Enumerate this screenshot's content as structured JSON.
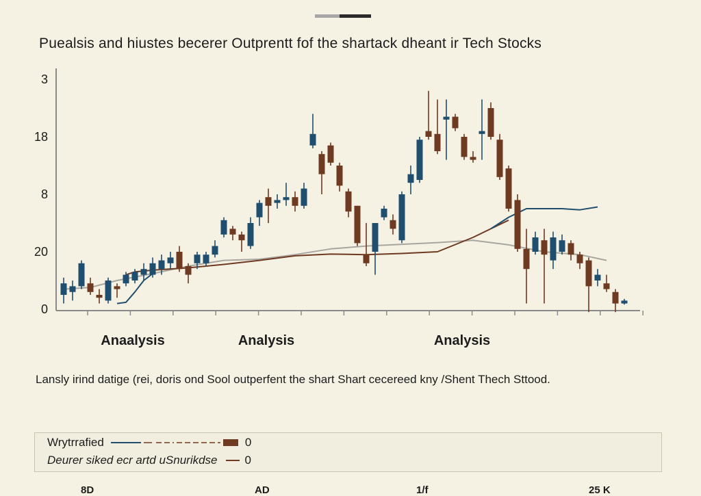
{
  "title": "Puealsis and hiustes becerer Outprentt fof the shartack dheant ir Tech Stocks",
  "caption": "Lansly irind datige (rei, doris ond Sool outperfent the shart Shart cecereed kny /Shent Thech Sttood.",
  "colors": {
    "background": "#f5f1e3",
    "bullish": "#1f4e6e",
    "bearish": "#6e3a22",
    "ma_long": "#6e3a22",
    "ma_gray": "#a9a6a0",
    "ma_blue": "#1f4e6e"
  },
  "legend": [
    {
      "label": "Wrytrrafied",
      "value": "0",
      "swatch": "line-dash-candle"
    },
    {
      "label": "Deurer siked ecr artd uSnurikdse",
      "value": "0",
      "swatch": "short-line"
    }
  ],
  "bottom_ticks": [
    "8D",
    "AD",
    "1/f",
    "25 K"
  ],
  "chart_data": {
    "type": "candlestick",
    "title": "Puealsis and hiustes becerer Outprentt fof the shartack dheant ir Tech Stocks",
    "y_tick_labels": [
      "0",
      "20",
      "8",
      "18",
      "3"
    ],
    "y_tick_positions": [
      0,
      1,
      2,
      3,
      4
    ],
    "ylim": [
      0,
      4.3
    ],
    "x_section_labels": [
      {
        "label": "Anaalysis",
        "index": 7
      },
      {
        "label": "Analysis",
        "index": 22
      },
      {
        "label": "Analysis",
        "index": 44
      }
    ],
    "grid": false,
    "legend_position": "bottom",
    "candles": [
      {
        "i": 0,
        "open": 0.25,
        "close": 0.45,
        "high": 0.55,
        "low": 0.1
      },
      {
        "i": 1,
        "open": 0.3,
        "close": 0.4,
        "high": 0.5,
        "low": 0.15
      },
      {
        "i": 2,
        "open": 0.4,
        "close": 0.8,
        "high": 0.85,
        "low": 0.35
      },
      {
        "i": 3,
        "open": 0.45,
        "close": 0.3,
        "high": 0.55,
        "low": 0.25
      },
      {
        "i": 4,
        "open": 0.25,
        "close": 0.2,
        "high": 0.35,
        "low": 0.1
      },
      {
        "i": 5,
        "open": 0.15,
        "close": 0.5,
        "high": 0.55,
        "low": 0.1
      },
      {
        "i": 6,
        "open": 0.4,
        "close": 0.35,
        "high": 0.45,
        "low": 0.2
      },
      {
        "i": 7,
        "open": 0.45,
        "close": 0.6,
        "high": 0.65,
        "low": 0.4
      },
      {
        "i": 8,
        "open": 0.5,
        "close": 0.65,
        "high": 0.7,
        "low": 0.45
      },
      {
        "i": 9,
        "open": 0.6,
        "close": 0.7,
        "high": 0.8,
        "low": 0.5
      },
      {
        "i": 10,
        "open": 0.6,
        "close": 0.8,
        "high": 0.9,
        "low": 0.55
      },
      {
        "i": 11,
        "open": 0.7,
        "close": 0.85,
        "high": 0.95,
        "low": 0.6
      },
      {
        "i": 12,
        "open": 0.8,
        "close": 0.9,
        "high": 1.0,
        "low": 0.7
      },
      {
        "i": 13,
        "open": 1.0,
        "close": 0.7,
        "high": 1.1,
        "low": 0.65
      },
      {
        "i": 14,
        "open": 0.75,
        "close": 0.6,
        "high": 0.8,
        "low": 0.45
      },
      {
        "i": 15,
        "open": 0.8,
        "close": 0.95,
        "high": 1.0,
        "low": 0.7
      },
      {
        "i": 16,
        "open": 0.8,
        "close": 0.95,
        "high": 1.0,
        "low": 0.75
      },
      {
        "i": 17,
        "open": 0.95,
        "close": 1.1,
        "high": 1.2,
        "low": 0.9
      },
      {
        "i": 18,
        "open": 1.3,
        "close": 1.55,
        "high": 1.6,
        "low": 1.25
      },
      {
        "i": 19,
        "open": 1.4,
        "close": 1.3,
        "high": 1.45,
        "low": 1.2
      },
      {
        "i": 20,
        "open": 1.3,
        "close": 1.2,
        "high": 1.35,
        "low": 1.0
      },
      {
        "i": 21,
        "open": 1.1,
        "close": 1.5,
        "high": 1.6,
        "low": 1.05
      },
      {
        "i": 22,
        "open": 1.6,
        "close": 1.85,
        "high": 1.9,
        "low": 1.45
      },
      {
        "i": 23,
        "open": 1.95,
        "close": 1.8,
        "high": 2.1,
        "low": 1.5
      },
      {
        "i": 24,
        "open": 1.85,
        "close": 1.9,
        "high": 2.0,
        "low": 1.75
      },
      {
        "i": 25,
        "open": 1.9,
        "close": 1.95,
        "high": 2.2,
        "low": 1.8
      },
      {
        "i": 26,
        "open": 1.95,
        "close": 1.8,
        "high": 2.05,
        "low": 1.7
      },
      {
        "i": 27,
        "open": 1.8,
        "close": 2.1,
        "high": 2.2,
        "low": 1.75
      },
      {
        "i": 28,
        "open": 2.85,
        "close": 3.05,
        "high": 3.4,
        "low": 2.8
      },
      {
        "i": 29,
        "open": 2.7,
        "close": 2.35,
        "high": 2.75,
        "low": 2.0
      },
      {
        "i": 30,
        "open": 2.85,
        "close": 2.55,
        "high": 2.9,
        "low": 2.5
      },
      {
        "i": 31,
        "open": 2.5,
        "close": 2.15,
        "high": 2.55,
        "low": 2.05
      },
      {
        "i": 32,
        "open": 2.05,
        "close": 1.7,
        "high": 2.1,
        "low": 1.6
      },
      {
        "i": 33,
        "open": 1.8,
        "close": 1.15,
        "high": 1.8,
        "low": 1.1
      },
      {
        "i": 34,
        "open": 0.95,
        "close": 0.8,
        "high": 1.5,
        "low": 0.75
      },
      {
        "i": 35,
        "open": 1.0,
        "close": 1.5,
        "high": 1.5,
        "low": 0.6
      },
      {
        "i": 36,
        "open": 1.6,
        "close": 1.75,
        "high": 1.8,
        "low": 1.55
      },
      {
        "i": 37,
        "open": 1.55,
        "close": 1.4,
        "high": 1.65,
        "low": 1.3
      },
      {
        "i": 38,
        "open": 1.2,
        "close": 2.0,
        "high": 2.05,
        "low": 1.15
      },
      {
        "i": 39,
        "open": 2.2,
        "close": 2.35,
        "high": 2.5,
        "low": 2.0
      },
      {
        "i": 40,
        "open": 2.25,
        "close": 2.95,
        "high": 3.0,
        "low": 2.2
      },
      {
        "i": 41,
        "open": 3.1,
        "close": 3.0,
        "high": 3.8,
        "low": 2.95
      },
      {
        "i": 42,
        "open": 3.05,
        "close": 2.75,
        "high": 3.65,
        "low": 2.7
      },
      {
        "i": 43,
        "open": 3.3,
        "close": 3.35,
        "high": 3.65,
        "low": 2.6
      },
      {
        "i": 44,
        "open": 3.35,
        "close": 3.15,
        "high": 3.4,
        "low": 3.1
      },
      {
        "i": 45,
        "open": 3.0,
        "close": 2.65,
        "high": 3.05,
        "low": 2.6
      },
      {
        "i": 46,
        "open": 2.65,
        "close": 2.6,
        "high": 2.75,
        "low": 2.55
      },
      {
        "i": 47,
        "open": 3.05,
        "close": 3.1,
        "high": 3.65,
        "low": 2.6
      },
      {
        "i": 48,
        "open": 3.5,
        "close": 3.0,
        "high": 3.6,
        "low": 2.95
      },
      {
        "i": 49,
        "open": 2.95,
        "close": 2.3,
        "high": 3.05,
        "low": 2.25
      },
      {
        "i": 50,
        "open": 2.45,
        "close": 1.75,
        "high": 2.5,
        "low": 1.7
      },
      {
        "i": 51,
        "open": 1.9,
        "close": 1.05,
        "high": 2.0,
        "low": 1.0
      },
      {
        "i": 52,
        "open": 1.05,
        "close": 0.7,
        "high": 1.4,
        "low": 0.1
      },
      {
        "i": 53,
        "open": 1.0,
        "close": 1.25,
        "high": 1.35,
        "low": 0.95
      },
      {
        "i": 54,
        "open": 1.2,
        "close": 0.95,
        "high": 1.4,
        "low": 0.1
      },
      {
        "i": 55,
        "open": 0.85,
        "close": 1.25,
        "high": 1.35,
        "low": 0.7
      },
      {
        "i": 56,
        "open": 1.0,
        "close": 1.2,
        "high": 1.3,
        "low": 0.95
      },
      {
        "i": 57,
        "open": 1.15,
        "close": 0.95,
        "high": 1.2,
        "low": 0.85
      },
      {
        "i": 58,
        "open": 0.95,
        "close": 0.8,
        "high": 1.0,
        "low": 0.7
      },
      {
        "i": 59,
        "open": 0.85,
        "close": 0.4,
        "high": 0.9,
        "low": -0.05
      },
      {
        "i": 60,
        "open": 0.5,
        "close": 0.6,
        "high": 0.7,
        "low": 0.4
      },
      {
        "i": 61,
        "open": 0.45,
        "close": 0.35,
        "high": 0.6,
        "low": 0.3
      },
      {
        "i": 62,
        "open": 0.3,
        "close": 0.1,
        "high": 0.35,
        "low": -0.05
      },
      {
        "i": 63,
        "open": 0.1,
        "close": 0.15,
        "high": 0.18,
        "low": 0.08
      }
    ],
    "series": [
      {
        "color": "#a9a6a0",
        "x": [
          0,
          3,
          6,
          10,
          14,
          18,
          22,
          26,
          30,
          34,
          38,
          42,
          46,
          50,
          54,
          58,
          61
        ],
        "values": [
          0.35,
          0.38,
          0.5,
          0.62,
          0.75,
          0.85,
          0.87,
          0.95,
          1.05,
          1.1,
          1.13,
          1.16,
          1.2,
          1.12,
          1.0,
          0.95,
          0.85
        ]
      },
      {
        "color": "#6e3a22",
        "x": [
          7,
          8,
          10,
          14,
          18,
          22,
          26,
          30,
          34,
          38,
          42,
          46,
          48,
          50
        ],
        "values": [
          0.6,
          0.65,
          0.68,
          0.72,
          0.78,
          0.85,
          0.93,
          0.96,
          0.95,
          0.97,
          1.0,
          1.25,
          1.4,
          1.55
        ]
      },
      {
        "color": "#1f4e6e",
        "x": [
          6,
          7,
          8,
          9,
          10
        ],
        "values": [
          0.1,
          0.12,
          0.3,
          0.5,
          0.62
        ]
      },
      {
        "color": "#1f4e6e",
        "x": [
          48,
          50,
          52,
          54,
          56,
          58,
          60
        ],
        "values": [
          1.4,
          1.6,
          1.75,
          1.75,
          1.75,
          1.73,
          1.78
        ]
      }
    ]
  }
}
